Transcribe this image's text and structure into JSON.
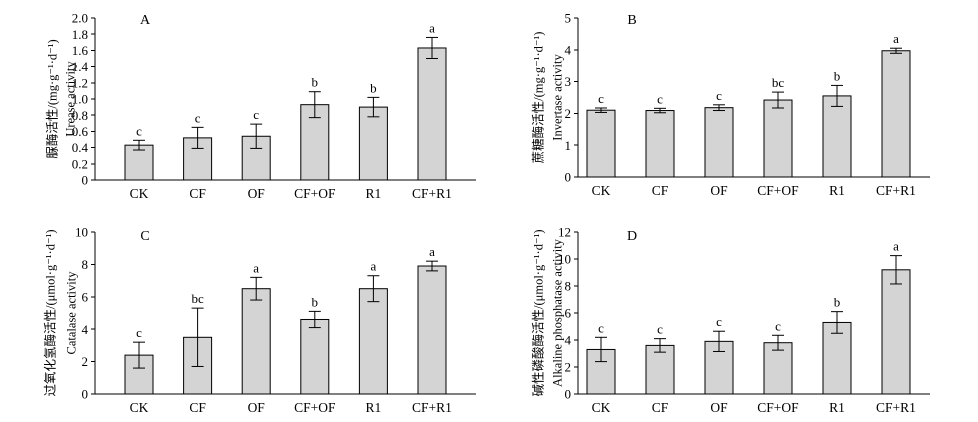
{
  "colors": {
    "bar_fill": "#d4d4d4",
    "edge": "#000000"
  },
  "chart_data": [
    {
      "type": "bar",
      "title": "A",
      "categories": [
        "CK",
        "CF",
        "OF",
        "CF+OF",
        "R1",
        "CF+R1"
      ],
      "values": [
        0.43,
        0.52,
        0.54,
        0.93,
        0.9,
        1.63
      ],
      "errors": [
        0.06,
        0.13,
        0.15,
        0.16,
        0.12,
        0.13
      ],
      "letters": [
        "c",
        "c",
        "c",
        "b",
        "b",
        "a"
      ],
      "ylabel": [
        "脲酶活性/(mg·g⁻¹·d⁻¹)",
        "Urease activity"
      ],
      "ylim": [
        0,
        2.0
      ],
      "ytick_labels": [
        "0",
        "0.2",
        "0.4",
        "0.6",
        "0.8",
        "1.0",
        "1.2",
        "1.4",
        "1.6",
        "1.8",
        "2.0"
      ]
    },
    {
      "type": "bar",
      "title": "B",
      "categories": [
        "CK",
        "CF",
        "OF",
        "CF+OF",
        "R1",
        "CF+R1"
      ],
      "values": [
        2.1,
        2.09,
        2.18,
        2.42,
        2.55,
        3.97
      ],
      "errors": [
        0.07,
        0.07,
        0.09,
        0.25,
        0.33,
        0.08
      ],
      "letters": [
        "c",
        "c",
        "c",
        "bc",
        "b",
        "a"
      ],
      "ylabel": [
        "蔗糖酶活性/(mg·g⁻¹·d⁻¹)",
        "Invertase activity"
      ],
      "ylim": [
        0,
        5
      ],
      "ytick_labels": [
        "0",
        "1",
        "2",
        "3",
        "4",
        "5"
      ]
    },
    {
      "type": "bar",
      "title": "C",
      "categories": [
        "CK",
        "CF",
        "OF",
        "CF+OF",
        "R1",
        "CF+R1"
      ],
      "values": [
        2.4,
        3.5,
        6.5,
        4.6,
        6.5,
        7.9
      ],
      "errors": [
        0.8,
        1.8,
        0.7,
        0.5,
        0.8,
        0.3
      ],
      "letters": [
        "c",
        "bc",
        "a",
        "b",
        "a",
        "a"
      ],
      "ylabel": [
        "过氧化氢酶活性/(μmol·g⁻¹·d⁻¹)",
        "Catalase activity"
      ],
      "ylim": [
        0,
        10
      ],
      "ytick_labels": [
        "0",
        "2",
        "4",
        "6",
        "8",
        "10"
      ]
    },
    {
      "type": "bar",
      "title": "D",
      "categories": [
        "CK",
        "CF",
        "OF",
        "CF+OF",
        "R1",
        "CF+R1"
      ],
      "values": [
        3.3,
        3.6,
        3.9,
        3.8,
        5.3,
        9.2
      ],
      "errors": [
        0.9,
        0.5,
        0.75,
        0.55,
        0.8,
        1.05
      ],
      "letters": [
        "c",
        "c",
        "c",
        "c",
        "b",
        "a"
      ],
      "ylabel": [
        "碱性磷酸酶活性/(μmol·g⁻¹·d⁻¹)",
        "Alkaline phosphatase activity"
      ],
      "ylim": [
        0,
        12
      ],
      "ytick_labels": [
        "0",
        "2",
        "4",
        "6",
        "8",
        "10",
        "12"
      ]
    }
  ]
}
